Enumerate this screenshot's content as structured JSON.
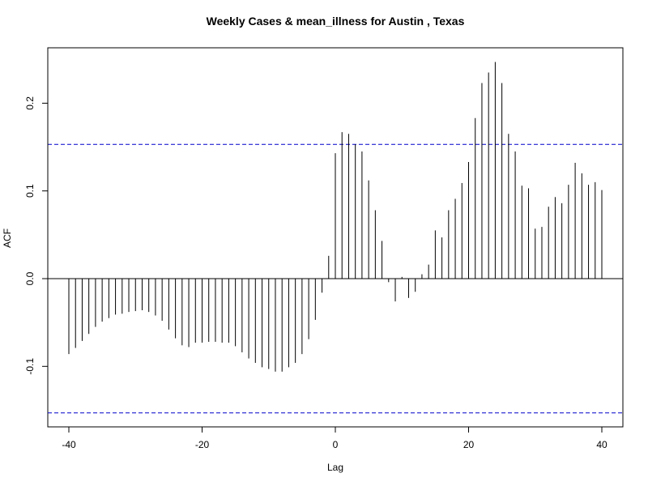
{
  "chart_data": {
    "type": "bar",
    "title": "Weekly Cases & mean_illness for Austin , Texas",
    "xlabel": "Lag",
    "ylabel": "ACF",
    "xlim": [
      -40,
      40
    ],
    "ylim": [
      -0.155,
      0.245
    ],
    "x_ticks": [
      -40,
      -20,
      0,
      20,
      40
    ],
    "y_ticks": [
      -0.1,
      0.0,
      0.1,
      0.2
    ],
    "y_tick_labels": [
      "-0.1",
      "0.0",
      "0.1",
      "0.2"
    ],
    "confidence_limits": [
      0.153,
      -0.153
    ],
    "zero_line": 0,
    "grid": false,
    "colors": {
      "bars": "#000000",
      "confidence": "#0000cc",
      "frame": "#000000"
    },
    "x": [
      -40,
      -39,
      -38,
      -37,
      -36,
      -35,
      -34,
      -33,
      -32,
      -31,
      -30,
      -29,
      -28,
      -27,
      -26,
      -25,
      -24,
      -23,
      -22,
      -21,
      -20,
      -19,
      -18,
      -17,
      -16,
      -15,
      -14,
      -13,
      -12,
      -11,
      -10,
      -9,
      -8,
      -7,
      -6,
      -5,
      -4,
      -3,
      -2,
      -1,
      0,
      1,
      2,
      3,
      4,
      5,
      6,
      7,
      8,
      9,
      10,
      11,
      12,
      13,
      14,
      15,
      16,
      17,
      18,
      19,
      20,
      21,
      22,
      23,
      24,
      25,
      26,
      27,
      28,
      29,
      30,
      31,
      32,
      33,
      34,
      35,
      36,
      37,
      38,
      39,
      40
    ],
    "values": [
      -0.086,
      -0.079,
      -0.071,
      -0.063,
      -0.055,
      -0.049,
      -0.045,
      -0.041,
      -0.04,
      -0.038,
      -0.037,
      -0.036,
      -0.038,
      -0.042,
      -0.048,
      -0.058,
      -0.068,
      -0.076,
      -0.078,
      -0.073,
      -0.073,
      -0.072,
      -0.072,
      -0.073,
      -0.073,
      -0.077,
      -0.084,
      -0.091,
      -0.096,
      -0.101,
      -0.103,
      -0.106,
      -0.106,
      -0.101,
      -0.096,
      -0.086,
      -0.069,
      -0.047,
      -0.016,
      0.026,
      0.143,
      0.167,
      0.165,
      0.153,
      0.145,
      0.112,
      0.078,
      0.043,
      -0.004,
      -0.026,
      0.002,
      -0.022,
      -0.015,
      0.005,
      0.016,
      0.055,
      0.047,
      0.078,
      0.091,
      0.109,
      0.133,
      0.183,
      0.223,
      0.235,
      0.247,
      0.223,
      0.165,
      0.145,
      0.106,
      0.103,
      0.057,
      0.059,
      0.082,
      0.093,
      0.086,
      0.107,
      0.132,
      0.12,
      0.107,
      0.11,
      0.101
    ]
  }
}
